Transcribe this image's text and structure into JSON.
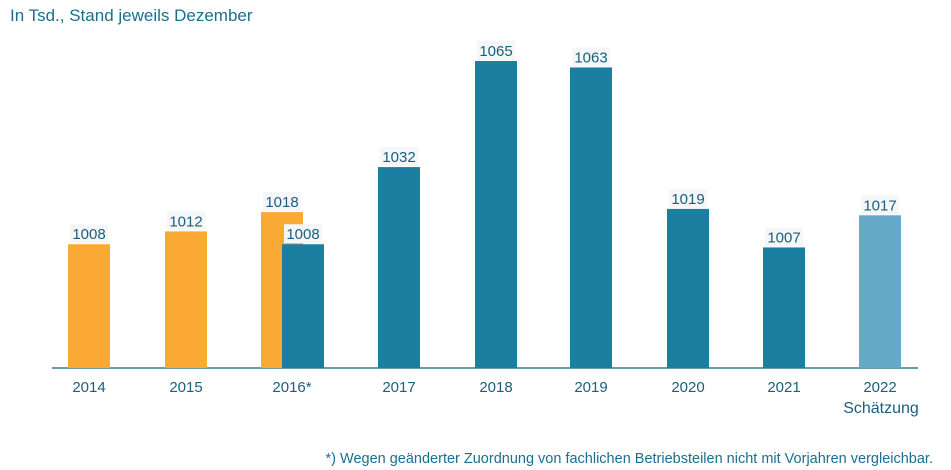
{
  "chart_data": {
    "type": "bar",
    "title": "",
    "subtitle": "In Tsd., Stand jeweils Dezember",
    "categories": [
      "2014",
      "2015",
      "2016*",
      "2017",
      "2018",
      "2019",
      "2020",
      "2021",
      "2022"
    ],
    "category_note": {
      "2022": "Schätzung"
    },
    "series": [
      {
        "color": "#F9A934",
        "values": [
          1008,
          1012,
          1018,
          null,
          null,
          null,
          null,
          null,
          null
        ]
      },
      {
        "color": "#1A7FA0",
        "values": [
          null,
          null,
          1008,
          1032,
          1065,
          1063,
          1019,
          1007,
          null
        ]
      },
      {
        "color": "#65A9C8",
        "values": [
          null,
          null,
          null,
          null,
          null,
          null,
          null,
          null,
          1017
        ]
      }
    ],
    "ylim": [
      969.5,
      1070
    ],
    "grid": false,
    "legend": "none",
    "footnote": "*) Wegen geänderter Zuordnung von fachlichen Betriebsteilen nicht mit Vorjahren vergleichbar."
  }
}
